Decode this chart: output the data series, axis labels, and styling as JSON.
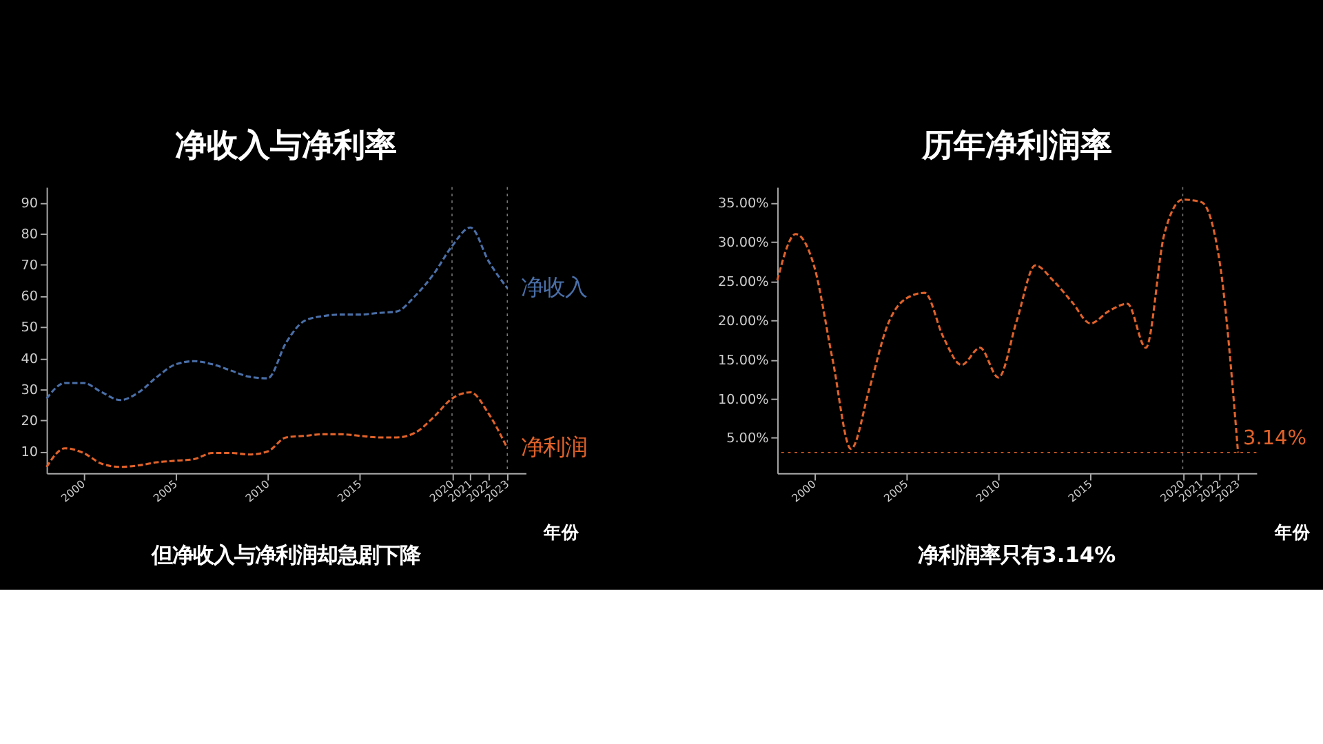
{
  "chart_data": [
    {
      "type": "line",
      "title": "净收入与净利率",
      "xlabel": "年份",
      "x": [
        1998,
        1999,
        2000,
        2001,
        2002,
        2003,
        2004,
        2005,
        2006,
        2007,
        2008,
        2009,
        2010,
        2011,
        2012,
        2013,
        2014,
        2015,
        2016,
        2017,
        2018,
        2019,
        2020,
        2021,
        2022,
        2023
      ],
      "xlim": [
        1998,
        2024
      ],
      "xticks": [
        2000,
        2005,
        2010,
        2015,
        2020,
        2021,
        2022,
        2023
      ],
      "ylim": [
        3,
        95
      ],
      "yticks": [
        10,
        20,
        30,
        40,
        50,
        60,
        70,
        80,
        90
      ],
      "series": [
        {
          "name": "净收入",
          "color": "#4a6fa8",
          "values": [
            27,
            32,
            32,
            29,
            26.5,
            29,
            34,
            38,
            39,
            38,
            36,
            34,
            33.5,
            45,
            52,
            53.5,
            54,
            54,
            54.5,
            55,
            60,
            67,
            76,
            82,
            71,
            62.5
          ]
        },
        {
          "name": "净利润",
          "color": "#e0622a",
          "values": [
            5,
            11,
            9.5,
            6,
            5,
            5.5,
            6.5,
            7,
            7.5,
            9.5,
            9.5,
            9,
            10,
            14.5,
            15,
            15.5,
            15.5,
            15,
            14.5,
            14.5,
            16,
            21,
            27,
            29,
            22,
            11
          ]
        }
      ],
      "line_style": "dashed",
      "marker": "none",
      "grid": false,
      "ref_lines": [
        {
          "axis": "x",
          "value": 2020,
          "line_style": "dotted",
          "color": "#777777"
        },
        {
          "axis": "x",
          "value": 2023,
          "line_style": "dotted",
          "color": "#777777"
        }
      ],
      "annotations": [
        "但净收入与净利润却急剧下降"
      ]
    },
    {
      "type": "line",
      "title": "历年净利润率",
      "xlabel": "年份",
      "x": [
        1998,
        1999,
        2000,
        2001,
        2002,
        2003,
        2004,
        2005,
        2006,
        2007,
        2008,
        2009,
        2010,
        2011,
        2012,
        2013,
        2014,
        2015,
        2016,
        2017,
        2018,
        2019,
        2020,
        2021,
        2022,
        2023
      ],
      "xlim": [
        1998,
        2024
      ],
      "xticks": [
        2000,
        2005,
        2010,
        2015,
        2020,
        2021,
        2022,
        2023
      ],
      "ylim": [
        0.5,
        37
      ],
      "yticks": [
        {
          "value": 5,
          "label": "5.00%"
        },
        {
          "value": 10,
          "label": "10.00%"
        },
        {
          "value": 15,
          "label": "15.00%"
        },
        {
          "value": 20,
          "label": "20.00%"
        },
        {
          "value": 25,
          "label": "25.00%"
        },
        {
          "value": 30,
          "label": "30.00%"
        },
        {
          "value": 35,
          "label": "35.00%"
        }
      ],
      "series": [
        {
          "color": "#e0622a",
          "values": [
            25.1,
            31,
            26.9,
            15,
            3.6,
            11.3,
            19.5,
            22.8,
            23.5,
            17.9,
            14.3,
            16.5,
            12.7,
            20,
            27,
            25,
            22.3,
            19.6,
            21.2,
            22.1,
            16.5,
            31,
            35.4,
            35.1,
            27.5,
            3.14
          ]
        }
      ],
      "line_style": "dashed",
      "marker": "none",
      "grid": false,
      "ref_lines": [
        {
          "axis": "y",
          "value": 3.14,
          "label": "3.14%",
          "color": "#e0622a",
          "line_style": "dotted"
        },
        {
          "axis": "x",
          "value": 2020,
          "line_style": "dotted",
          "color": "#777777"
        }
      ],
      "annotations": [
        "净利润率只有3.14%"
      ]
    }
  ]
}
